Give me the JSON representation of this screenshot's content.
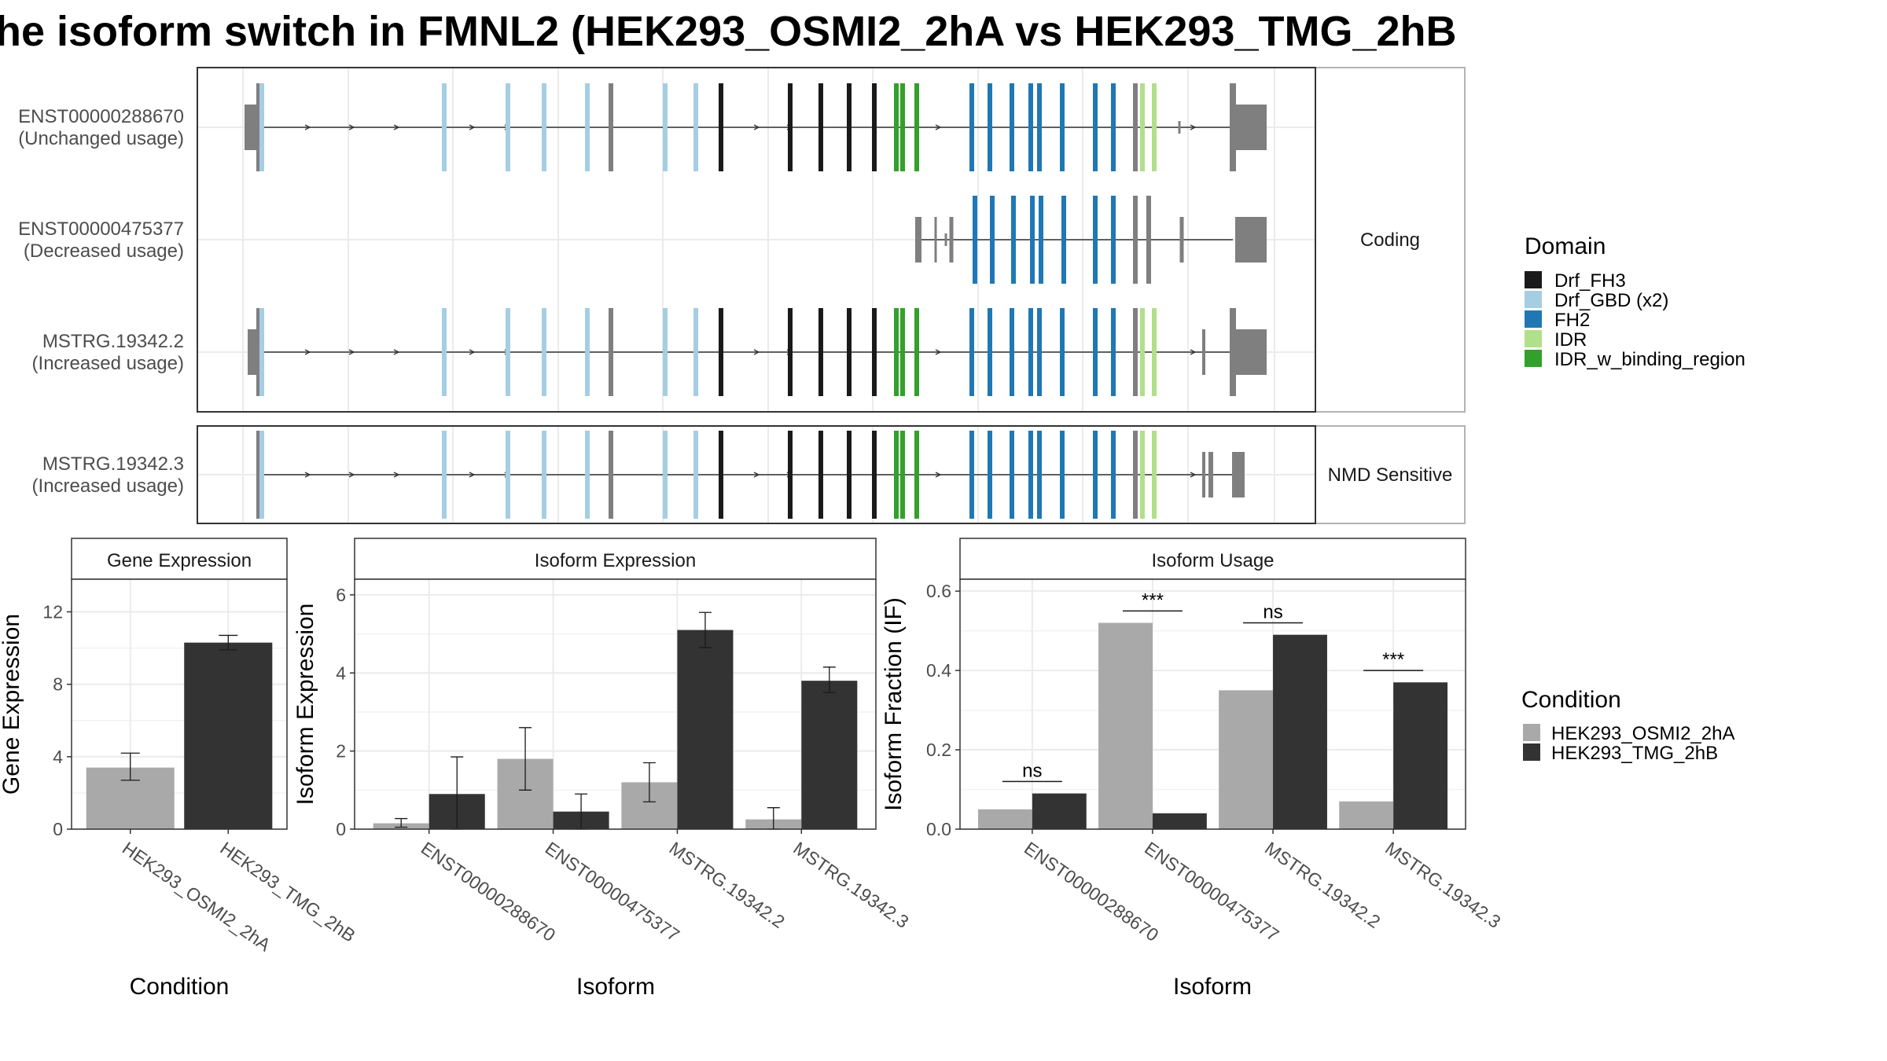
{
  "title": "he isoform switch in FMNL2 (HEK293_OSMI2_2hA vs HEK293_TMG_2hB",
  "colors": {
    "Drf_FH3": "#1a1a1a",
    "Drf_GBD (x2)": "#a6cee3",
    "FH2": "#1f78b4",
    "IDR": "#b2df8a",
    "IDR_w_binding_region": "#33a02c",
    "noncoding": "#7f7f7f",
    "cond1": "#a9a9a9",
    "cond2": "#333333"
  },
  "transcripts": {
    "coding_label": "Coding",
    "nmd_label": "NMD Sensitive",
    "items": [
      {
        "id": "ENST00000288670",
        "usage": "(Unchanged usage)"
      },
      {
        "id": "ENST00000475377",
        "usage": "(Decreased usage)"
      },
      {
        "id": "MSTRG.19342.2",
        "usage": "(Increased usage)"
      },
      {
        "id": "MSTRG.19342.3",
        "usage": "(Increased usage)"
      }
    ]
  },
  "legends": {
    "domain_title": "Domain",
    "domains": [
      "Drf_FH3",
      "Drf_GBD (x2)",
      "FH2",
      "IDR",
      "IDR_w_binding_region"
    ],
    "condition_title": "Condition",
    "conditions": [
      "HEK293_OSMI2_2hA",
      "HEK293_TMG_2hB"
    ]
  },
  "chart_data": [
    {
      "type": "bar",
      "title": "Gene Expression",
      "xlabel": "Condition",
      "ylabel": "Gene Expression",
      "ylim": [
        0,
        13.8
      ],
      "yticks": [
        0,
        4,
        8,
        12
      ],
      "categories": [
        "HEK293_OSMI2_2hA",
        "HEK293_TMG_2hB"
      ],
      "values": [
        3.4,
        10.3
      ],
      "errors": [
        [
          2.7,
          4.2
        ],
        [
          9.9,
          10.7
        ]
      ]
    },
    {
      "type": "bar",
      "title": "Isoform Expression",
      "xlabel": "Isoform",
      "ylabel": "Isoform Expression",
      "ylim": [
        0,
        6.4
      ],
      "yticks": [
        0,
        2,
        4,
        6
      ],
      "categories": [
        "ENST00000288670",
        "ENST00000475377",
        "MSTRG.19342.2",
        "MSTRG.19342.3"
      ],
      "series": [
        {
          "name": "HEK293_OSMI2_2hA",
          "values": [
            0.15,
            1.8,
            1.2,
            0.25
          ],
          "errors": [
            [
              0.05,
              0.27
            ],
            [
              1.0,
              2.6
            ],
            [
              0.7,
              1.7
            ],
            [
              0.0,
              0.55
            ]
          ]
        },
        {
          "name": "HEK293_TMG_2hB",
          "values": [
            0.9,
            0.45,
            5.1,
            3.8
          ],
          "errors": [
            [
              0.0,
              1.85
            ],
            [
              0.0,
              0.9
            ],
            [
              4.65,
              5.55
            ],
            [
              3.5,
              4.15
            ]
          ]
        }
      ]
    },
    {
      "type": "bar",
      "title": "Isoform Usage",
      "xlabel": "Isoform",
      "ylabel": "Isoform Fraction (IF)",
      "ylim": [
        0,
        0.63
      ],
      "yticks": [
        0.0,
        0.2,
        0.4,
        0.6
      ],
      "categories": [
        "ENST00000288670",
        "ENST00000475377",
        "MSTRG.19342.2",
        "MSTRG.19342.3"
      ],
      "series": [
        {
          "name": "HEK293_OSMI2_2hA",
          "values": [
            0.05,
            0.52,
            0.35,
            0.07
          ]
        },
        {
          "name": "HEK293_TMG_2hB",
          "values": [
            0.09,
            0.04,
            0.49,
            0.37
          ]
        }
      ],
      "significance": [
        "ns",
        "***",
        "ns",
        "***"
      ],
      "sig_y": [
        0.12,
        0.55,
        0.52,
        0.4
      ]
    }
  ]
}
